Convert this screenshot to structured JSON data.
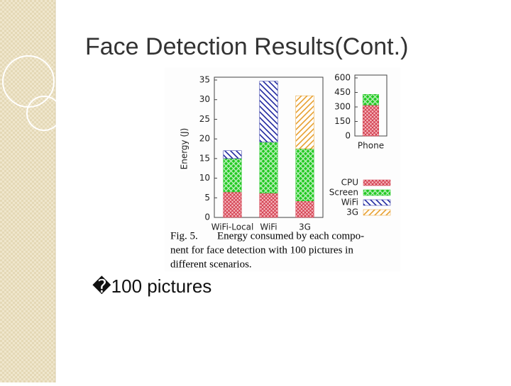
{
  "slide": {
    "title": "Face Detection Results(Cont.)",
    "bullet": "�100 pictures"
  },
  "caption": [
    "Fig. 5.",
    "Energy consumed by each compo-",
    "nent for face detection with 100 pictures in",
    "different scenarios."
  ],
  "chart_data": [
    {
      "type": "bar",
      "stacked": true,
      "ylabel": "Energy (J)",
      "categories": [
        "WiFi-Local",
        "WiFi",
        "3G"
      ],
      "series": [
        {
          "name": "CPU",
          "color": "#d03848",
          "values": [
            6.5,
            6.2,
            4.2
          ]
        },
        {
          "name": "Screen",
          "color": "#22c822",
          "values": [
            8.5,
            13,
            13.3
          ]
        },
        {
          "name": "WiFi",
          "color": "#2028a0",
          "values": [
            2,
            15.5,
            0
          ]
        },
        {
          "name": "3G",
          "color": "#e8a030",
          "values": [
            0,
            0,
            13.5
          ]
        }
      ],
      "ylim": [
        0,
        35
      ],
      "yticks": [
        0,
        5,
        10,
        15,
        20,
        25,
        30,
        35
      ],
      "legend": "right"
    },
    {
      "type": "bar",
      "stacked": true,
      "categories": [
        "Phone"
      ],
      "series": [
        {
          "name": "CPU",
          "color": "#d03848",
          "values": [
            320
          ]
        },
        {
          "name": "Screen",
          "color": "#22c822",
          "values": [
            110
          ]
        }
      ],
      "ylim": [
        0,
        600
      ],
      "yticks": [
        0,
        150,
        300,
        450,
        600
      ]
    }
  ]
}
